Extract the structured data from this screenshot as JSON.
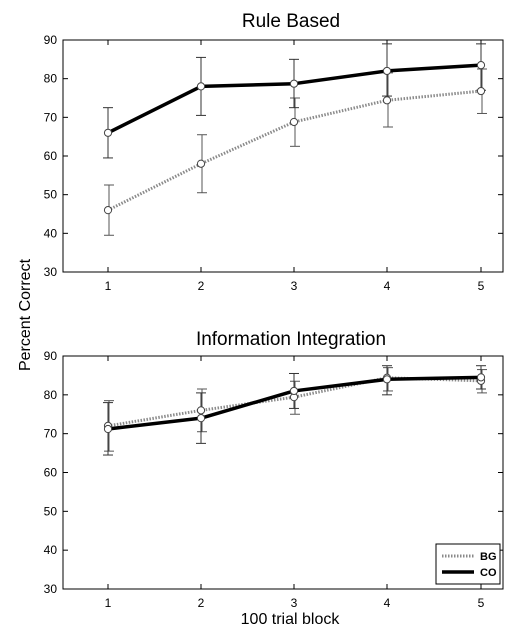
{
  "figure": {
    "ylabel": "Percent Correct",
    "xlabel": "100 trial block"
  },
  "legend": {
    "items": [
      {
        "label": "BG",
        "style": "dotted"
      },
      {
        "label": "CO",
        "style": "solid"
      }
    ],
    "placement": "bottom-right (lower panel)"
  },
  "colors": {
    "CO": "#000000",
    "BG": "#8a8a8a",
    "axis": "#000000"
  },
  "chart_data": [
    {
      "type": "line",
      "title": "Rule Based",
      "x": [
        1,
        2,
        3,
        4,
        5
      ],
      "xticks": [
        "1",
        "2",
        "3",
        "4",
        "5"
      ],
      "ylim": [
        30,
        90
      ],
      "yticks": [
        "30",
        "40",
        "50",
        "60",
        "70",
        "80",
        "90"
      ],
      "grid": false,
      "series": [
        {
          "name": "CO",
          "values": [
            66,
            78,
            78.7,
            82,
            83.5
          ],
          "err_low": [
            59.5,
            70.5,
            72.5,
            75.5,
            77
          ],
          "err_high": [
            72.5,
            85.5,
            85,
            89,
            89
          ]
        },
        {
          "name": "BG",
          "values": [
            46,
            58,
            68.8,
            74.4,
            76.8
          ],
          "err_low": [
            39.5,
            50.5,
            62.5,
            67.5,
            71
          ],
          "err_high": [
            52.5,
            65.5,
            75,
            81.5,
            82.5
          ]
        }
      ]
    },
    {
      "type": "line",
      "title": "Information Integration",
      "x": [
        1,
        2,
        3,
        4,
        5
      ],
      "xticks": [
        "1",
        "2",
        "3",
        "4",
        "5"
      ],
      "ylim": [
        30,
        90
      ],
      "yticks": [
        "30",
        "40",
        "50",
        "60",
        "70",
        "80",
        "90"
      ],
      "grid": false,
      "series": [
        {
          "name": "CO",
          "values": [
            71.2,
            74,
            81,
            84,
            84.5
          ],
          "err_low": [
            64.5,
            67.5,
            76.5,
            80,
            81.5
          ],
          "err_high": [
            78,
            80.5,
            85.5,
            87.5,
            87.5
          ]
        },
        {
          "name": "BG",
          "values": [
            72,
            76,
            79.4,
            84.4,
            83.6
          ],
          "err_low": [
            65.5,
            70.5,
            75,
            81,
            80.5
          ],
          "err_high": [
            78.5,
            81.5,
            83.5,
            87,
            86.5
          ]
        }
      ]
    }
  ]
}
